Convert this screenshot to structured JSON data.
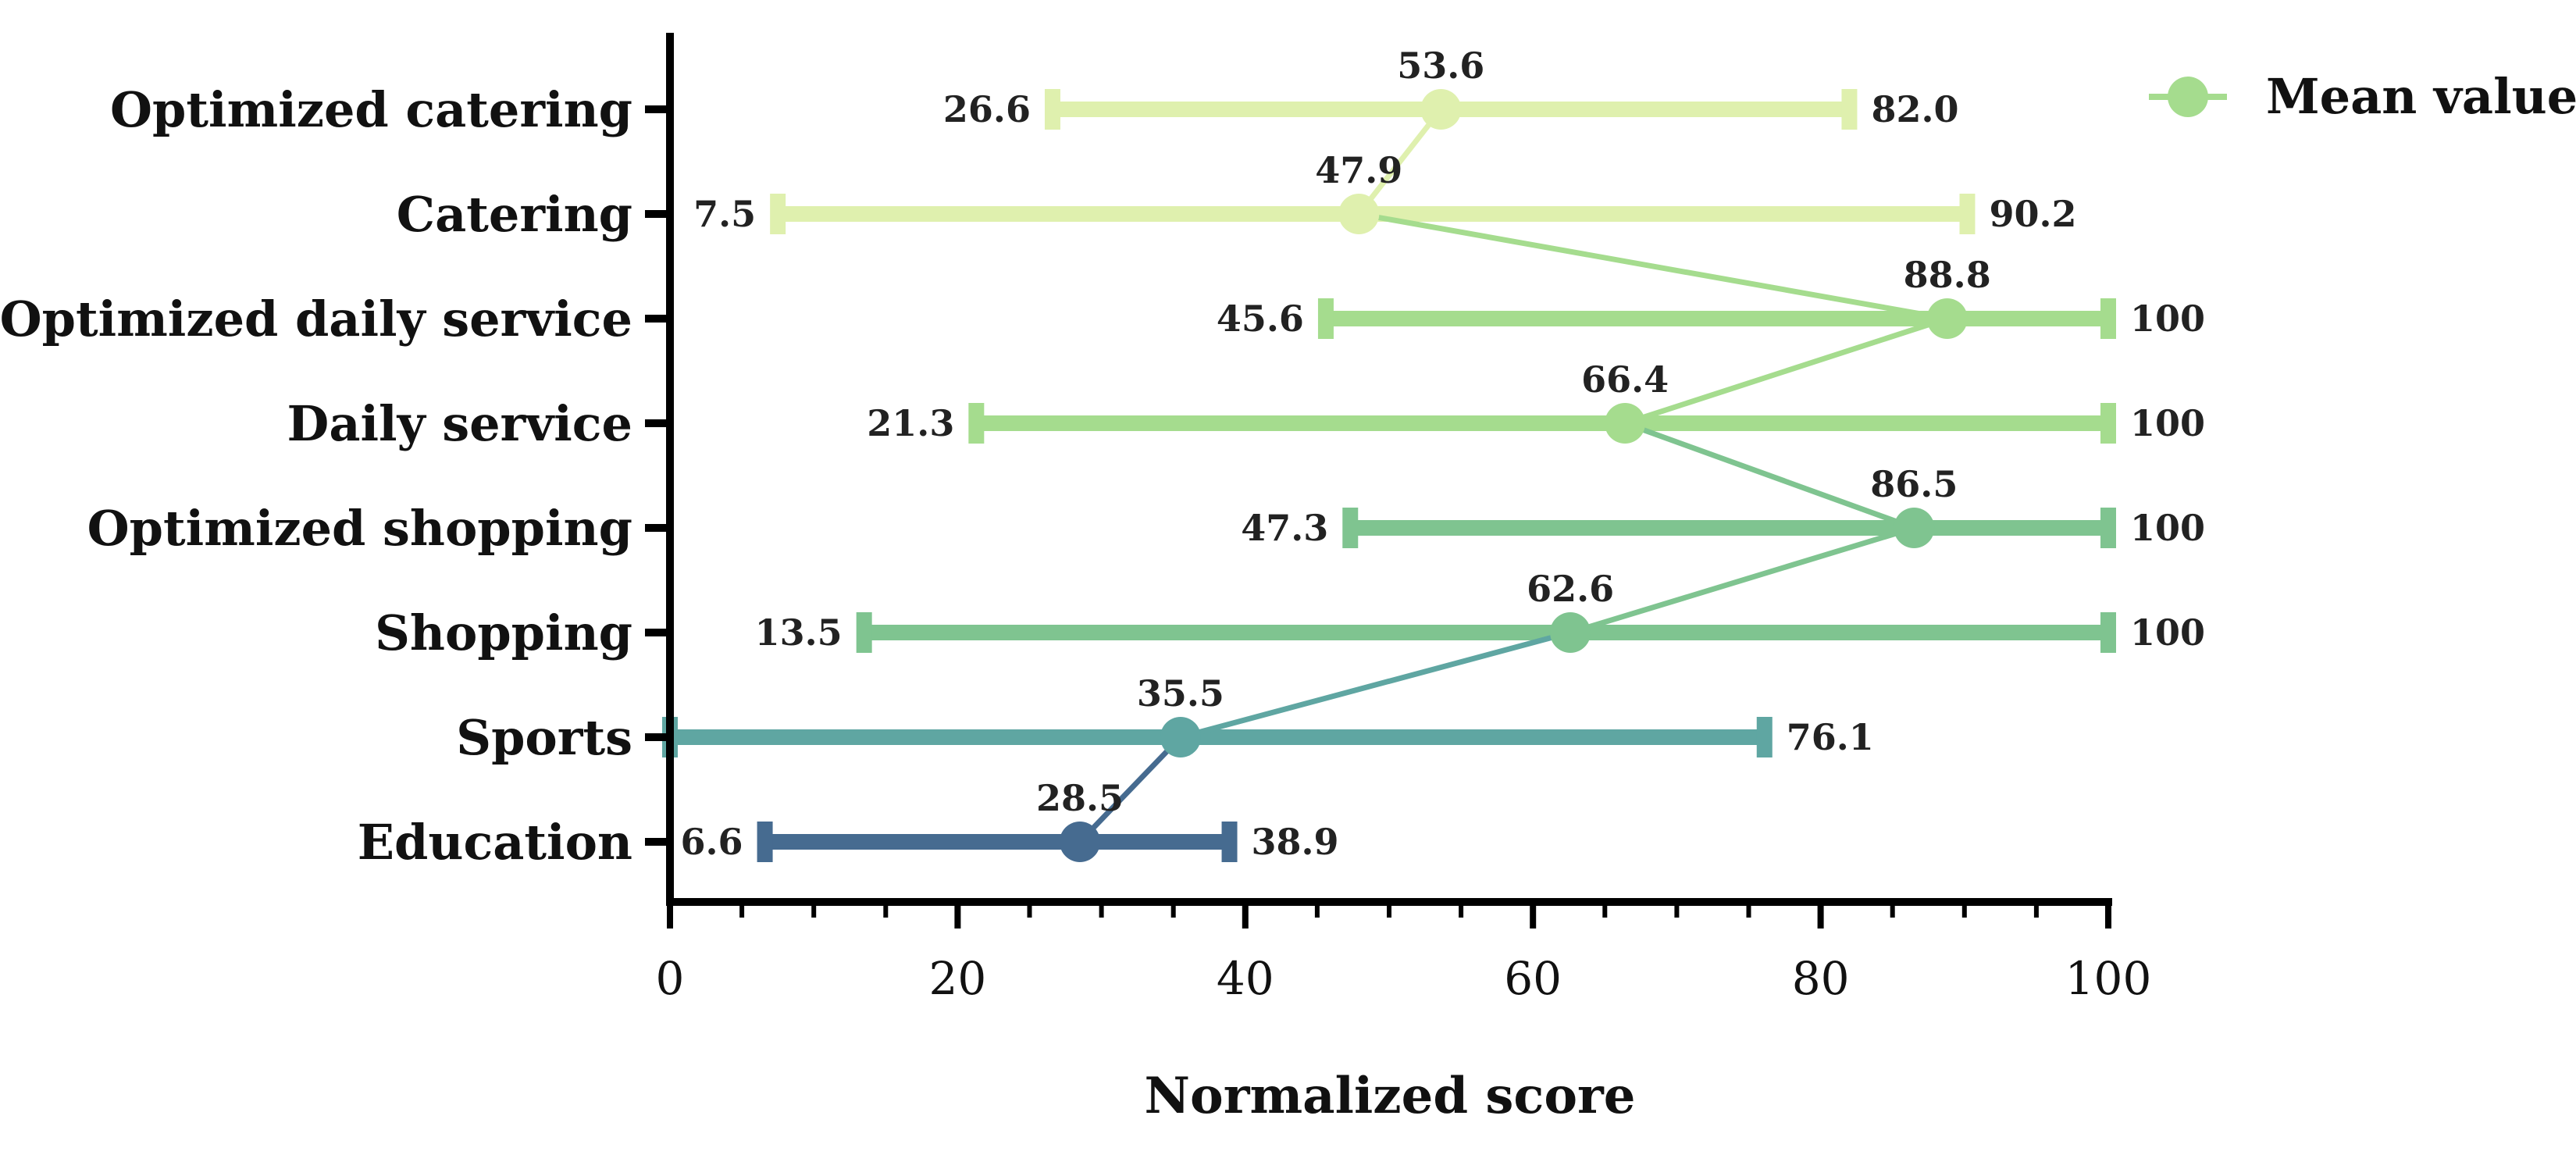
{
  "chart_data": {
    "type": "range-dot",
    "title": "",
    "xlabel": "Normalized score",
    "ylabel": "",
    "xlim": [
      0,
      100
    ],
    "xticks": [
      0,
      20,
      40,
      60,
      80,
      100
    ],
    "tick_labels": [
      "0",
      "20",
      "40",
      "60",
      "80",
      "100"
    ],
    "grid": false,
    "legend": {
      "position": "top-right",
      "label": "Mean value"
    },
    "categories": [
      "Optimized catering",
      "Catering",
      "Optimized daily service",
      "Daily service",
      "Optimized shopping",
      "Shopping",
      "Sports",
      "Education"
    ],
    "min": [
      26.6,
      7.5,
      45.6,
      21.3,
      47.3,
      13.5,
      0,
      6.6
    ],
    "mean": [
      53.6,
      47.9,
      88.8,
      66.4,
      86.5,
      62.6,
      35.5,
      28.5
    ],
    "max": [
      82.0,
      90.2,
      100,
      100,
      100,
      100,
      76.1,
      38.9
    ],
    "min_labels": [
      "26.6",
      "7.5",
      "45.6",
      "21.3",
      "47.3",
      "13.5",
      "",
      "6.6"
    ],
    "mean_labels": [
      "53.6",
      "47.9",
      "88.8",
      "66.4",
      "86.5",
      "62.6",
      "35.5",
      "28.5"
    ],
    "max_labels": [
      "82.0",
      "90.2",
      "100",
      "100",
      "100",
      "100",
      "76.1",
      "38.9"
    ],
    "colors": [
      "#dff0ae",
      "#dff0ae",
      "#a5dc8e",
      "#a5dc8e",
      "#7fc490",
      "#7fc490",
      "#5fa6a2",
      "#466b90"
    ],
    "legend_color": "#a5dc8e"
  }
}
